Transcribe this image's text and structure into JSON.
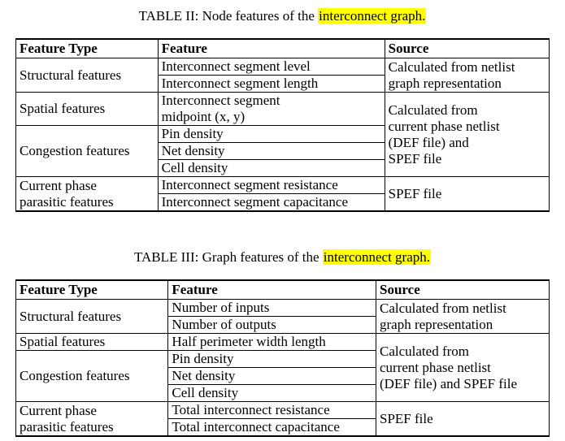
{
  "table2": {
    "caption_prefix": "TABLE II: Node features of the ",
    "caption_highlight": "interconnect graph.",
    "headers": [
      "Feature Type",
      "Feature",
      "Source"
    ],
    "groups": [
      {
        "type": "Structural features",
        "features": [
          "Interconnect segment level",
          "Interconnect segment length"
        ],
        "source": [
          "Calculated from netlist",
          "graph representation"
        ]
      },
      {
        "type": "Spatial features",
        "features": [
          "Interconnect segment",
          "midpoint (x, y)"
        ]
      },
      {
        "type": "Congestion features",
        "features": [
          "Pin density",
          "Net density",
          "Cell density"
        ]
      },
      {
        "type": [
          "Current phase",
          "parasitic features"
        ],
        "features": [
          "Interconnect segment resistance",
          "Interconnect segment capacitance"
        ],
        "source": "SPEF file"
      }
    ],
    "spatial_congestion_source": [
      "Calculated from",
      "current phase netlist",
      "(DEF file) and",
      "SPEF file"
    ]
  },
  "table3": {
    "caption_prefix": "TABLE III: Graph features of the ",
    "caption_highlight": "interconnect graph.",
    "headers": [
      "Feature Type",
      "Feature",
      "Source"
    ],
    "groups": [
      {
        "type": "Structural features",
        "features": [
          "Number of inputs",
          "Number of outputs"
        ],
        "source": [
          "Calculated from netlist",
          "graph representation"
        ]
      },
      {
        "type": "Spatial features",
        "features": [
          "Half perimeter width length"
        ]
      },
      {
        "type": "Congestion features",
        "features": [
          "Pin density",
          "Net density",
          "Cell density"
        ]
      },
      {
        "type": [
          "Current phase",
          "parasitic features"
        ],
        "features": [
          "Total interconnect resistance",
          "Total interconnect capacitance"
        ],
        "source": "SPEF file"
      }
    ],
    "spatial_congestion_source": [
      "Calculated from",
      "current phase netlist",
      "(DEF file) and SPEF file"
    ]
  }
}
